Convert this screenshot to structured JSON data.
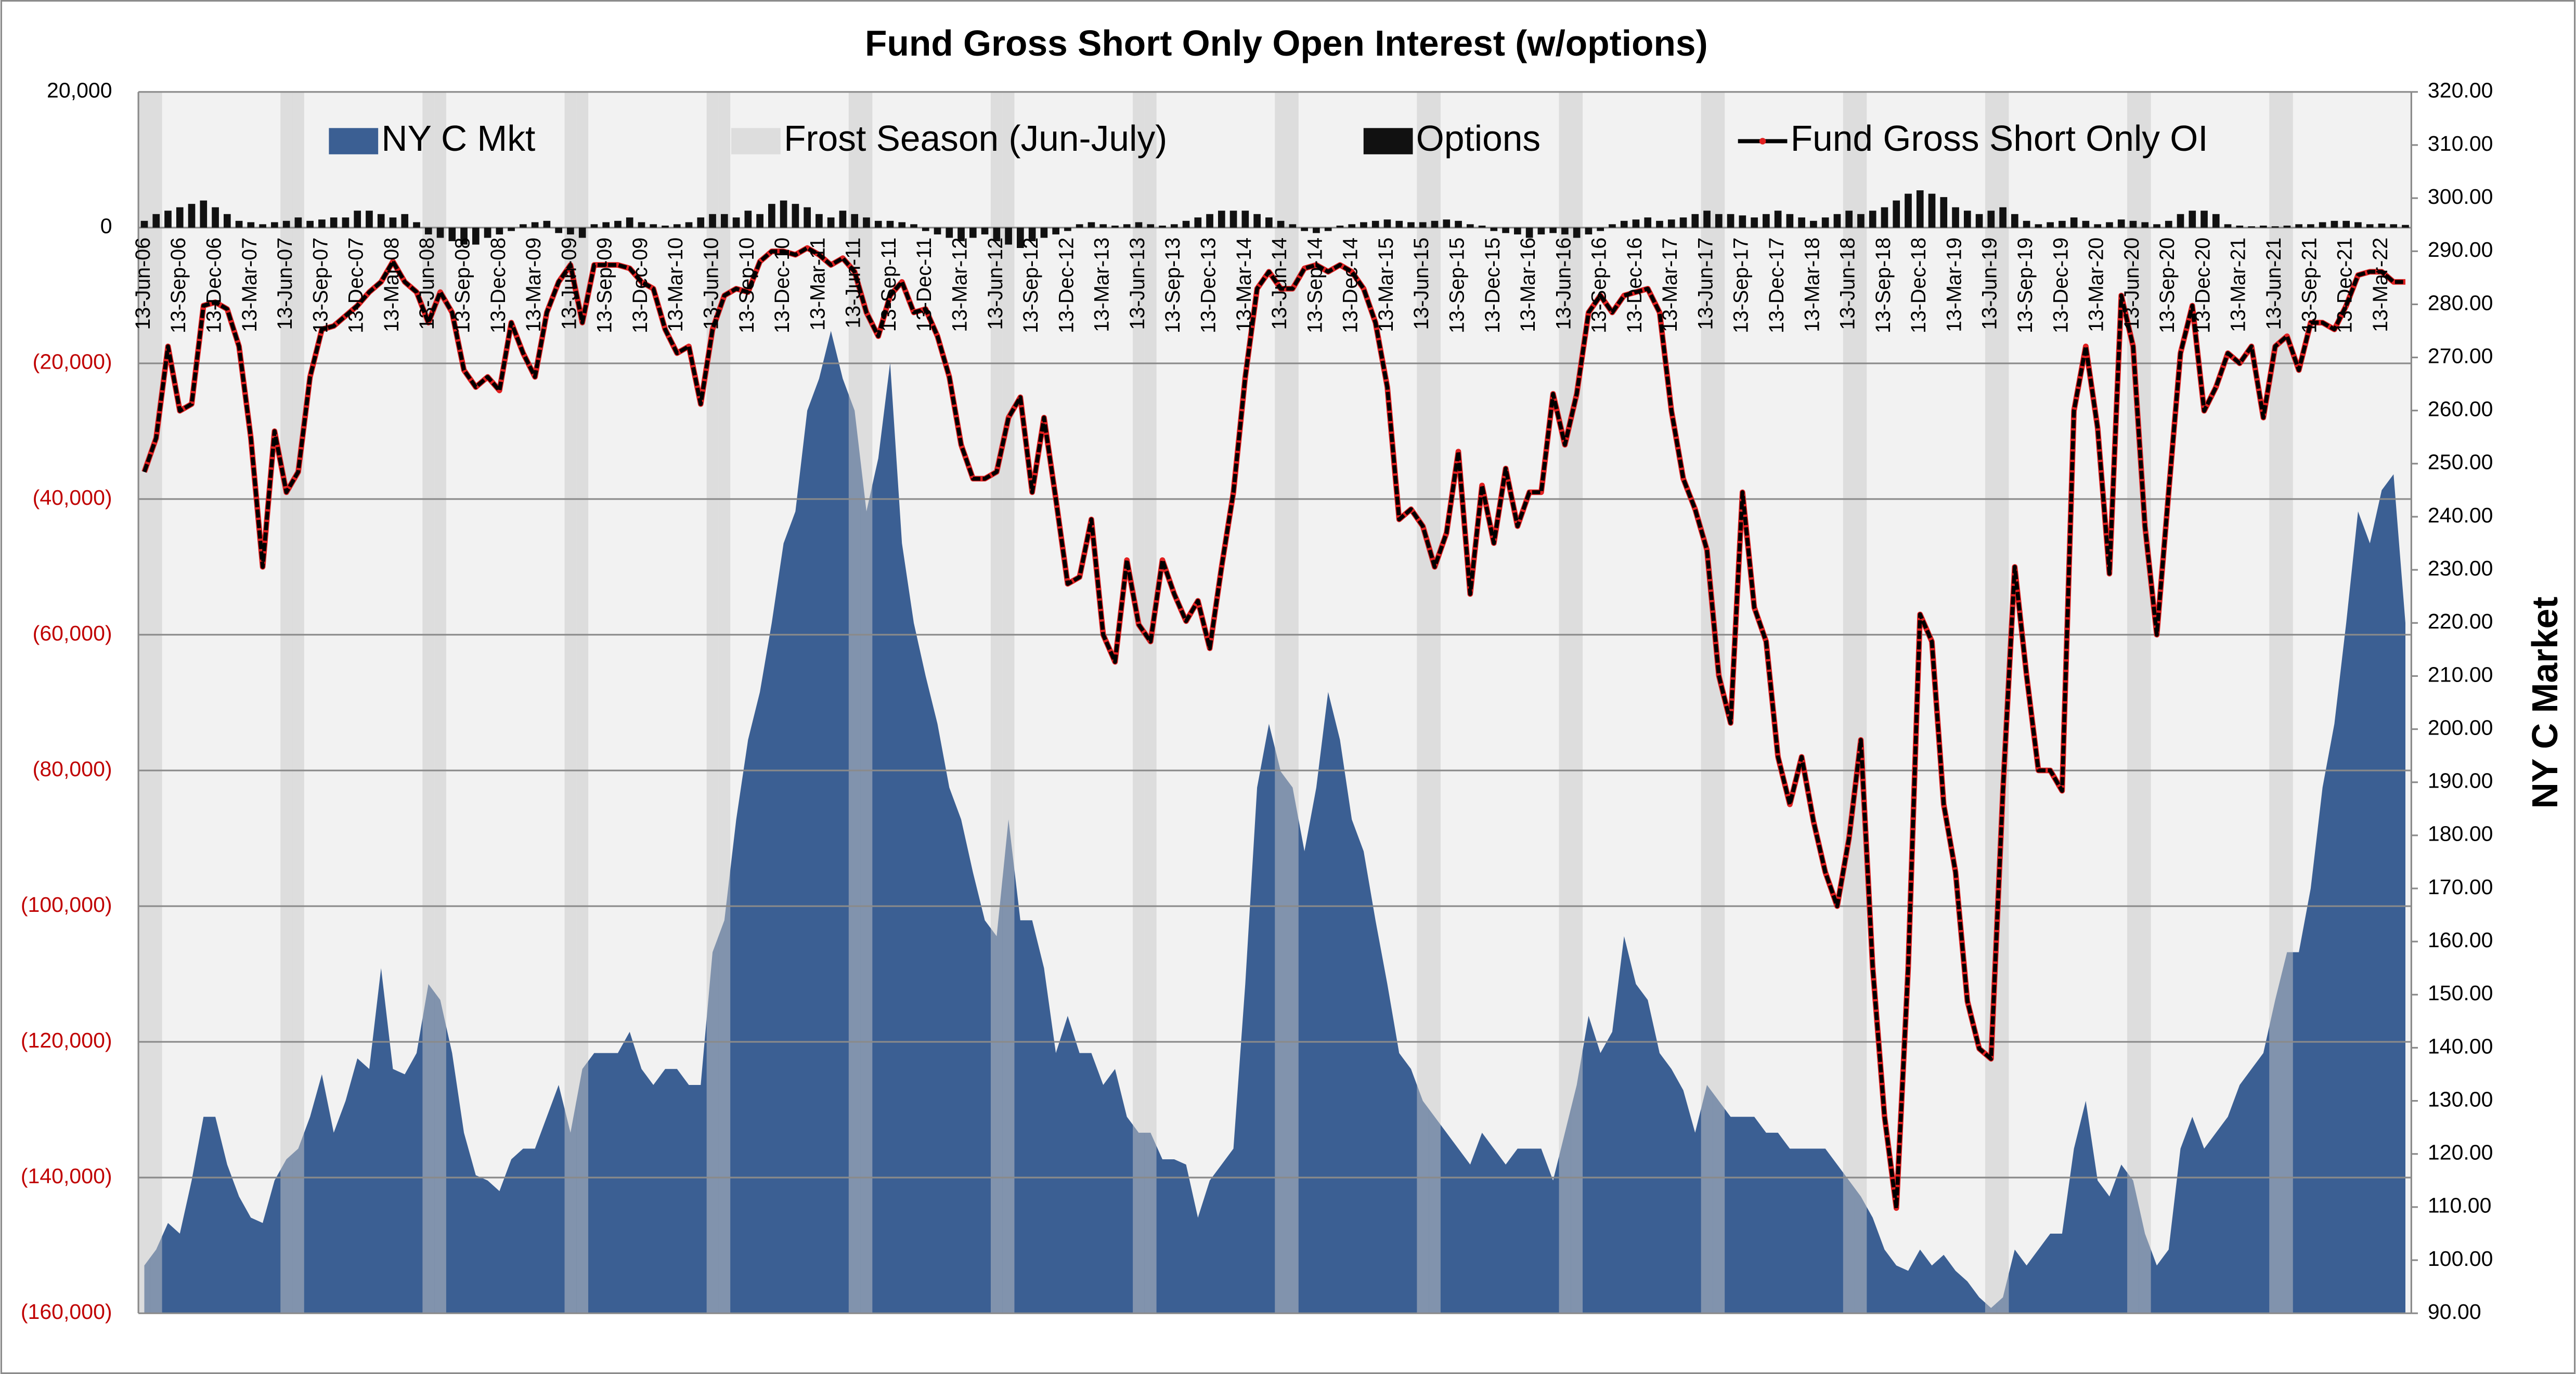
{
  "chart_data": {
    "type": "combo",
    "title": "Fund Gross Short Only Open Interest (w/options)",
    "y2_label": "NY C Market",
    "categories": [
      "13-Jun-06",
      null,
      null,
      "13-Sep-06",
      null,
      null,
      "13-Dec-06",
      null,
      null,
      "13-Mar-07",
      null,
      null,
      "13-Jun-07",
      null,
      null,
      "13-Sep-07",
      null,
      null,
      "13-Dec-07",
      null,
      null,
      "13-Mar-08",
      null,
      null,
      "13-Jun-08",
      null,
      null,
      "13-Sep-08",
      null,
      null,
      "13-Dec-08",
      null,
      null,
      "13-Mar-09",
      null,
      null,
      "13-Jun-09",
      null,
      null,
      "13-Sep-09",
      null,
      null,
      "13-Dec-09",
      null,
      null,
      "13-Mar-10",
      null,
      null,
      "13-Jun-10",
      null,
      null,
      "13-Sep-10",
      null,
      null,
      "13-Dec-10",
      null,
      null,
      "13-Mar-11",
      null,
      null,
      "13-Jun-11",
      null,
      null,
      "13-Sep-11",
      null,
      null,
      "13-Dec-11",
      null,
      null,
      "13-Mar-12",
      null,
      null,
      "13-Jun-12",
      null,
      null,
      "13-Sep-12",
      null,
      null,
      "13-Dec-12",
      null,
      null,
      "13-Mar-13",
      null,
      null,
      "13-Jun-13",
      null,
      null,
      "13-Sep-13",
      null,
      null,
      "13-Dec-13",
      null,
      null,
      "13-Mar-14",
      null,
      null,
      "13-Jun-14",
      null,
      null,
      "13-Sep-14",
      null,
      null,
      "13-Dec-14",
      null,
      null,
      "13-Mar-15",
      null,
      null,
      "13-Jun-15",
      null,
      null,
      "13-Sep-15",
      null,
      null,
      "13-Dec-15",
      null,
      null,
      "13-Mar-16",
      null,
      null,
      "13-Jun-16",
      null,
      null,
      "13-Sep-16",
      null,
      null,
      "13-Dec-16",
      null,
      null,
      "13-Mar-17",
      null,
      null,
      "13-Jun-17",
      null,
      null,
      "13-Sep-17",
      null,
      null,
      "13-Dec-17",
      null,
      null,
      "13-Mar-18",
      null,
      null,
      "13-Jun-18",
      null,
      null,
      "13-Sep-18",
      null,
      null,
      "13-Dec-18",
      null,
      null,
      "13-Mar-19",
      null,
      null,
      "13-Jun-19",
      null,
      null,
      "13-Sep-19",
      null,
      null,
      "13-Dec-19",
      null,
      null,
      "13-Mar-20",
      null,
      null,
      "13-Jun-20",
      null,
      null,
      "13-Sep-20",
      null,
      null,
      "13-Dec-20",
      null,
      null,
      "13-Mar-21",
      null,
      null,
      "13-Jun-21",
      null,
      null,
      "13-Sep-21",
      null,
      null,
      "13-Dec-21",
      null,
      null,
      "13-Mar-22",
      null,
      null
    ],
    "ylim": [
      -160000,
      20000
    ],
    "yticks": [
      {
        "value": 20000,
        "label": "20,000"
      },
      0,
      {
        "value": -20000,
        "label": "(20,000)"
      },
      {
        "value": -40000,
        "label": "(40,000)"
      },
      {
        "value": -60000,
        "label": "(60,000)"
      },
      {
        "value": -80000,
        "label": "(80,000)"
      },
      {
        "value": -100000,
        "label": "(100,000)"
      },
      {
        "value": -120000,
        "label": "(120,000)"
      },
      {
        "value": -140000,
        "label": "(140,000)"
      },
      {
        "value": -160000,
        "label": "(160,000)"
      }
    ],
    "y2lim": [
      90,
      320
    ],
    "y2ticks": [
      {
        "value": 320,
        "label": "320.00"
      },
      {
        "value": 310,
        "label": "310.00"
      },
      {
        "value": 300,
        "label": "300.00"
      },
      {
        "value": 290,
        "label": "290.00"
      },
      {
        "value": 280,
        "label": "280.00"
      },
      {
        "value": 270,
        "label": "270.00"
      },
      {
        "value": 260,
        "label": "260.00"
      },
      {
        "value": 250,
        "label": "250.00"
      },
      {
        "value": 240,
        "label": "240.00"
      },
      {
        "value": 230,
        "label": "230.00"
      },
      {
        "value": 220,
        "label": "220.00"
      },
      {
        "value": 210,
        "label": "210.00"
      },
      {
        "value": 200,
        "label": "200.00"
      },
      {
        "value": 190,
        "label": "190.00"
      },
      {
        "value": 180,
        "label": "180.00"
      },
      {
        "value": 170,
        "label": "170.00"
      },
      {
        "value": 160,
        "label": "160.00"
      },
      {
        "value": 150,
        "label": "150.00"
      },
      {
        "value": 140,
        "label": "140.00"
      },
      {
        "value": 130,
        "label": "130.00"
      },
      {
        "value": 120,
        "label": "120.00"
      },
      {
        "value": 110,
        "label": "110.00"
      },
      {
        "value": 100,
        "label": "100.00"
      },
      {
        "value": 90,
        "label": "90.00"
      }
    ],
    "grid": true,
    "legend": "top",
    "series": [
      {
        "name": "NY C Mkt",
        "type": "area",
        "axis": "y2",
        "color": "#3b5f93",
        "values": [
          99,
          102,
          107,
          105,
          115,
          127,
          127,
          118,
          112,
          108,
          107,
          115,
          119,
          121,
          127,
          135,
          124,
          130,
          138,
          136,
          155,
          136,
          135,
          139,
          152,
          149,
          139,
          124,
          116,
          115,
          113,
          119,
          121,
          121,
          127,
          133,
          124,
          136,
          139,
          139,
          139,
          143,
          136,
          133,
          136,
          136,
          133,
          133,
          158,
          164,
          183,
          198,
          207,
          220,
          235,
          241,
          260,
          266,
          275,
          266,
          260,
          241,
          251,
          269,
          235,
          220,
          210,
          201,
          189,
          183,
          173,
          164,
          161,
          183,
          164,
          164,
          155,
          139,
          146,
          139,
          139,
          133,
          136,
          127,
          124,
          124,
          119,
          119,
          118,
          108,
          115,
          118,
          121,
          152,
          189,
          201,
          192,
          189,
          177,
          189,
          207,
          198,
          183,
          177,
          164,
          152,
          139,
          136,
          130,
          127,
          124,
          121,
          118,
          124,
          121,
          118,
          121,
          121,
          121,
          115,
          124,
          133,
          146,
          139,
          143,
          161,
          152,
          149,
          139,
          136,
          132,
          124,
          133,
          130,
          127,
          127,
          127,
          124,
          124,
          121,
          121,
          121,
          121,
          118,
          115,
          112,
          108,
          102,
          99,
          98,
          102,
          99,
          101,
          98,
          96,
          93,
          91,
          93,
          102,
          99,
          102,
          105,
          105,
          121,
          130,
          115,
          112,
          118,
          115,
          105,
          99,
          102,
          121,
          127,
          121,
          124,
          127,
          133,
          136,
          139,
          149,
          158,
          158,
          170,
          189,
          201,
          220,
          241,
          235,
          245,
          248,
          220
        ]
      },
      {
        "name": "Frost Season (Jun-July)",
        "type": "bar",
        "axis": "y2",
        "color": "#c8c8c8",
        "values": [
          320,
          320,
          null,
          null,
          null,
          null,
          null,
          null,
          null,
          null,
          null,
          null,
          320,
          320,
          null,
          null,
          null,
          null,
          null,
          null,
          null,
          null,
          null,
          null,
          320,
          320,
          null,
          null,
          null,
          null,
          null,
          null,
          null,
          null,
          null,
          null,
          320,
          320,
          null,
          null,
          null,
          null,
          null,
          null,
          null,
          null,
          null,
          null,
          320,
          320,
          null,
          null,
          null,
          null,
          null,
          null,
          null,
          null,
          null,
          null,
          320,
          320,
          null,
          null,
          null,
          null,
          null,
          null,
          null,
          null,
          null,
          null,
          320,
          320,
          null,
          null,
          null,
          null,
          null,
          null,
          null,
          null,
          null,
          null,
          320,
          320,
          null,
          null,
          null,
          null,
          null,
          null,
          null,
          null,
          null,
          null,
          320,
          320,
          null,
          null,
          null,
          null,
          null,
          null,
          null,
          null,
          null,
          null,
          320,
          320,
          null,
          null,
          null,
          null,
          null,
          null,
          null,
          null,
          null,
          null,
          320,
          320,
          null,
          null,
          null,
          null,
          null,
          null,
          null,
          null,
          null,
          null,
          320,
          320,
          null,
          null,
          null,
          null,
          null,
          null,
          null,
          null,
          null,
          null,
          320,
          320,
          null,
          null,
          null,
          null,
          null,
          null,
          null,
          null,
          null,
          null,
          320,
          320,
          null,
          null,
          null,
          null,
          null,
          null,
          null,
          null,
          null,
          null,
          320,
          320,
          null,
          null,
          null,
          null,
          null,
          null,
          null,
          null,
          null,
          null,
          320,
          320,
          null,
          null,
          null,
          null,
          null,
          null,
          null,
          null,
          null,
          null
        ]
      },
      {
        "name": "Options",
        "type": "bar",
        "color": "#111111",
        "values": [
          1000,
          2000,
          2500,
          3000,
          3500,
          4000,
          3000,
          2000,
          1000,
          800,
          500,
          800,
          1000,
          1500,
          1000,
          1200,
          1500,
          1500,
          2500,
          2500,
          2000,
          1500,
          2000,
          800,
          -1000,
          -1500,
          -2000,
          -2500,
          -2500,
          -1500,
          -1000,
          -500,
          500,
          800,
          1000,
          -800,
          -1000,
          -1500,
          500,
          800,
          1000,
          1500,
          800,
          500,
          300,
          500,
          800,
          1500,
          2000,
          2000,
          1500,
          2500,
          2000,
          3500,
          4000,
          3500,
          3000,
          2000,
          1500,
          2500,
          2000,
          1500,
          1000,
          1000,
          800,
          500,
          -500,
          -1000,
          -1500,
          -2000,
          -1500,
          -1000,
          -2000,
          -2500,
          -3000,
          -2000,
          -1500,
          -1000,
          -500,
          500,
          800,
          500,
          300,
          500,
          800,
          500,
          300,
          500,
          1000,
          1500,
          2000,
          2500,
          2500,
          2500,
          2000,
          1500,
          1000,
          500,
          -500,
          -800,
          -500,
          300,
          500,
          800,
          1000,
          1200,
          1000,
          800,
          800,
          1000,
          1200,
          1000,
          500,
          300,
          -500,
          -800,
          -1000,
          -1500,
          -1000,
          -800,
          -1000,
          -1500,
          -1000,
          -500,
          500,
          1000,
          1200,
          1500,
          1000,
          1200,
          1500,
          2000,
          2500,
          2000,
          2000,
          1800,
          1500,
          2000,
          2500,
          2000,
          1500,
          1000,
          1500,
          2000,
          2500,
          2000,
          2500,
          3000,
          4000,
          5000,
          5500,
          5000,
          4500,
          3000,
          2500,
          2000,
          2500,
          3000,
          2000,
          1000,
          500,
          800,
          1000,
          1500,
          1000,
          500,
          800,
          1200,
          1000,
          800,
          500,
          1000,
          2000,
          2500,
          2500,
          2000,
          500,
          300,
          200,
          300,
          200,
          300,
          500,
          500,
          800,
          1000,
          1000,
          800,
          500,
          600,
          500,
          400
        ]
      },
      {
        "name": "Fund Gross Short Only OI",
        "type": "line",
        "color": "#000000",
        "marker_color": "#e02020",
        "values": [
          -36000,
          -31000,
          -17500,
          -27000,
          -26000,
          -11500,
          -11000,
          -12000,
          -17500,
          -31000,
          -50000,
          -30000,
          -39000,
          -36000,
          -22000,
          -15000,
          -14500,
          -13000,
          -11500,
          -9500,
          -8000,
          -5000,
          -8000,
          -9500,
          -14000,
          -9500,
          -12500,
          -21000,
          -23500,
          -22000,
          -24000,
          -14000,
          -18500,
          -22000,
          -12500,
          -8000,
          -5500,
          -14000,
          -5500,
          -5500,
          -5500,
          -6000,
          -8000,
          -9000,
          -15000,
          -18500,
          -17500,
          -26000,
          -15000,
          -10000,
          -9000,
          -9500,
          -5000,
          -3500,
          -3500,
          -4000,
          -3000,
          -4000,
          -5500,
          -4500,
          -6500,
          -12500,
          -16000,
          -10000,
          -8000,
          -12500,
          -12000,
          -16000,
          -22000,
          -32000,
          -37000,
          -37000,
          -36000,
          -28000,
          -25000,
          -39000,
          -28000,
          -40000,
          -52500,
          -51500,
          -43000,
          -60000,
          -64000,
          -49000,
          -58500,
          -61000,
          -49000,
          -54000,
          -58000,
          -55000,
          -62000,
          -50000,
          -39000,
          -22000,
          -9000,
          -6500,
          -9000,
          -9000,
          -6000,
          -5500,
          -6500,
          -5500,
          -6500,
          -9000,
          -14000,
          -23500,
          -43000,
          -41500,
          -44000,
          -50000,
          -45000,
          -33000,
          -54000,
          -38000,
          -46500,
          -35500,
          -44000,
          -39000,
          -39000,
          -24500,
          -32000,
          -24500,
          -12500,
          -10000,
          -12500,
          -10000,
          -9500,
          -9000,
          -12500,
          -27000,
          -37000,
          -41500,
          -47500,
          -66000,
          -73000,
          -39000,
          -56000,
          -61000,
          -78000,
          -85000,
          -78000,
          -87500,
          -95000,
          -100000,
          -90000,
          -75500,
          -109000,
          -131000,
          -144500,
          -109000,
          -57000,
          -61000,
          -85000,
          -95000,
          -114000,
          -121000,
          -122500,
          -83000,
          -50000,
          -66000,
          -80000,
          -80000,
          -83000,
          -27000,
          -17500,
          -29500,
          -51000,
          -10000,
          -17500,
          -44000,
          -60000,
          -39000,
          -18500,
          -11500,
          -27000,
          -23500,
          -18500,
          -20000,
          -17500,
          -28000,
          -17500,
          -16000,
          -21000,
          -14000,
          -14000,
          -15000,
          -11500,
          -7000,
          -6500,
          -6500,
          -8000,
          -8000
        ]
      }
    ]
  }
}
